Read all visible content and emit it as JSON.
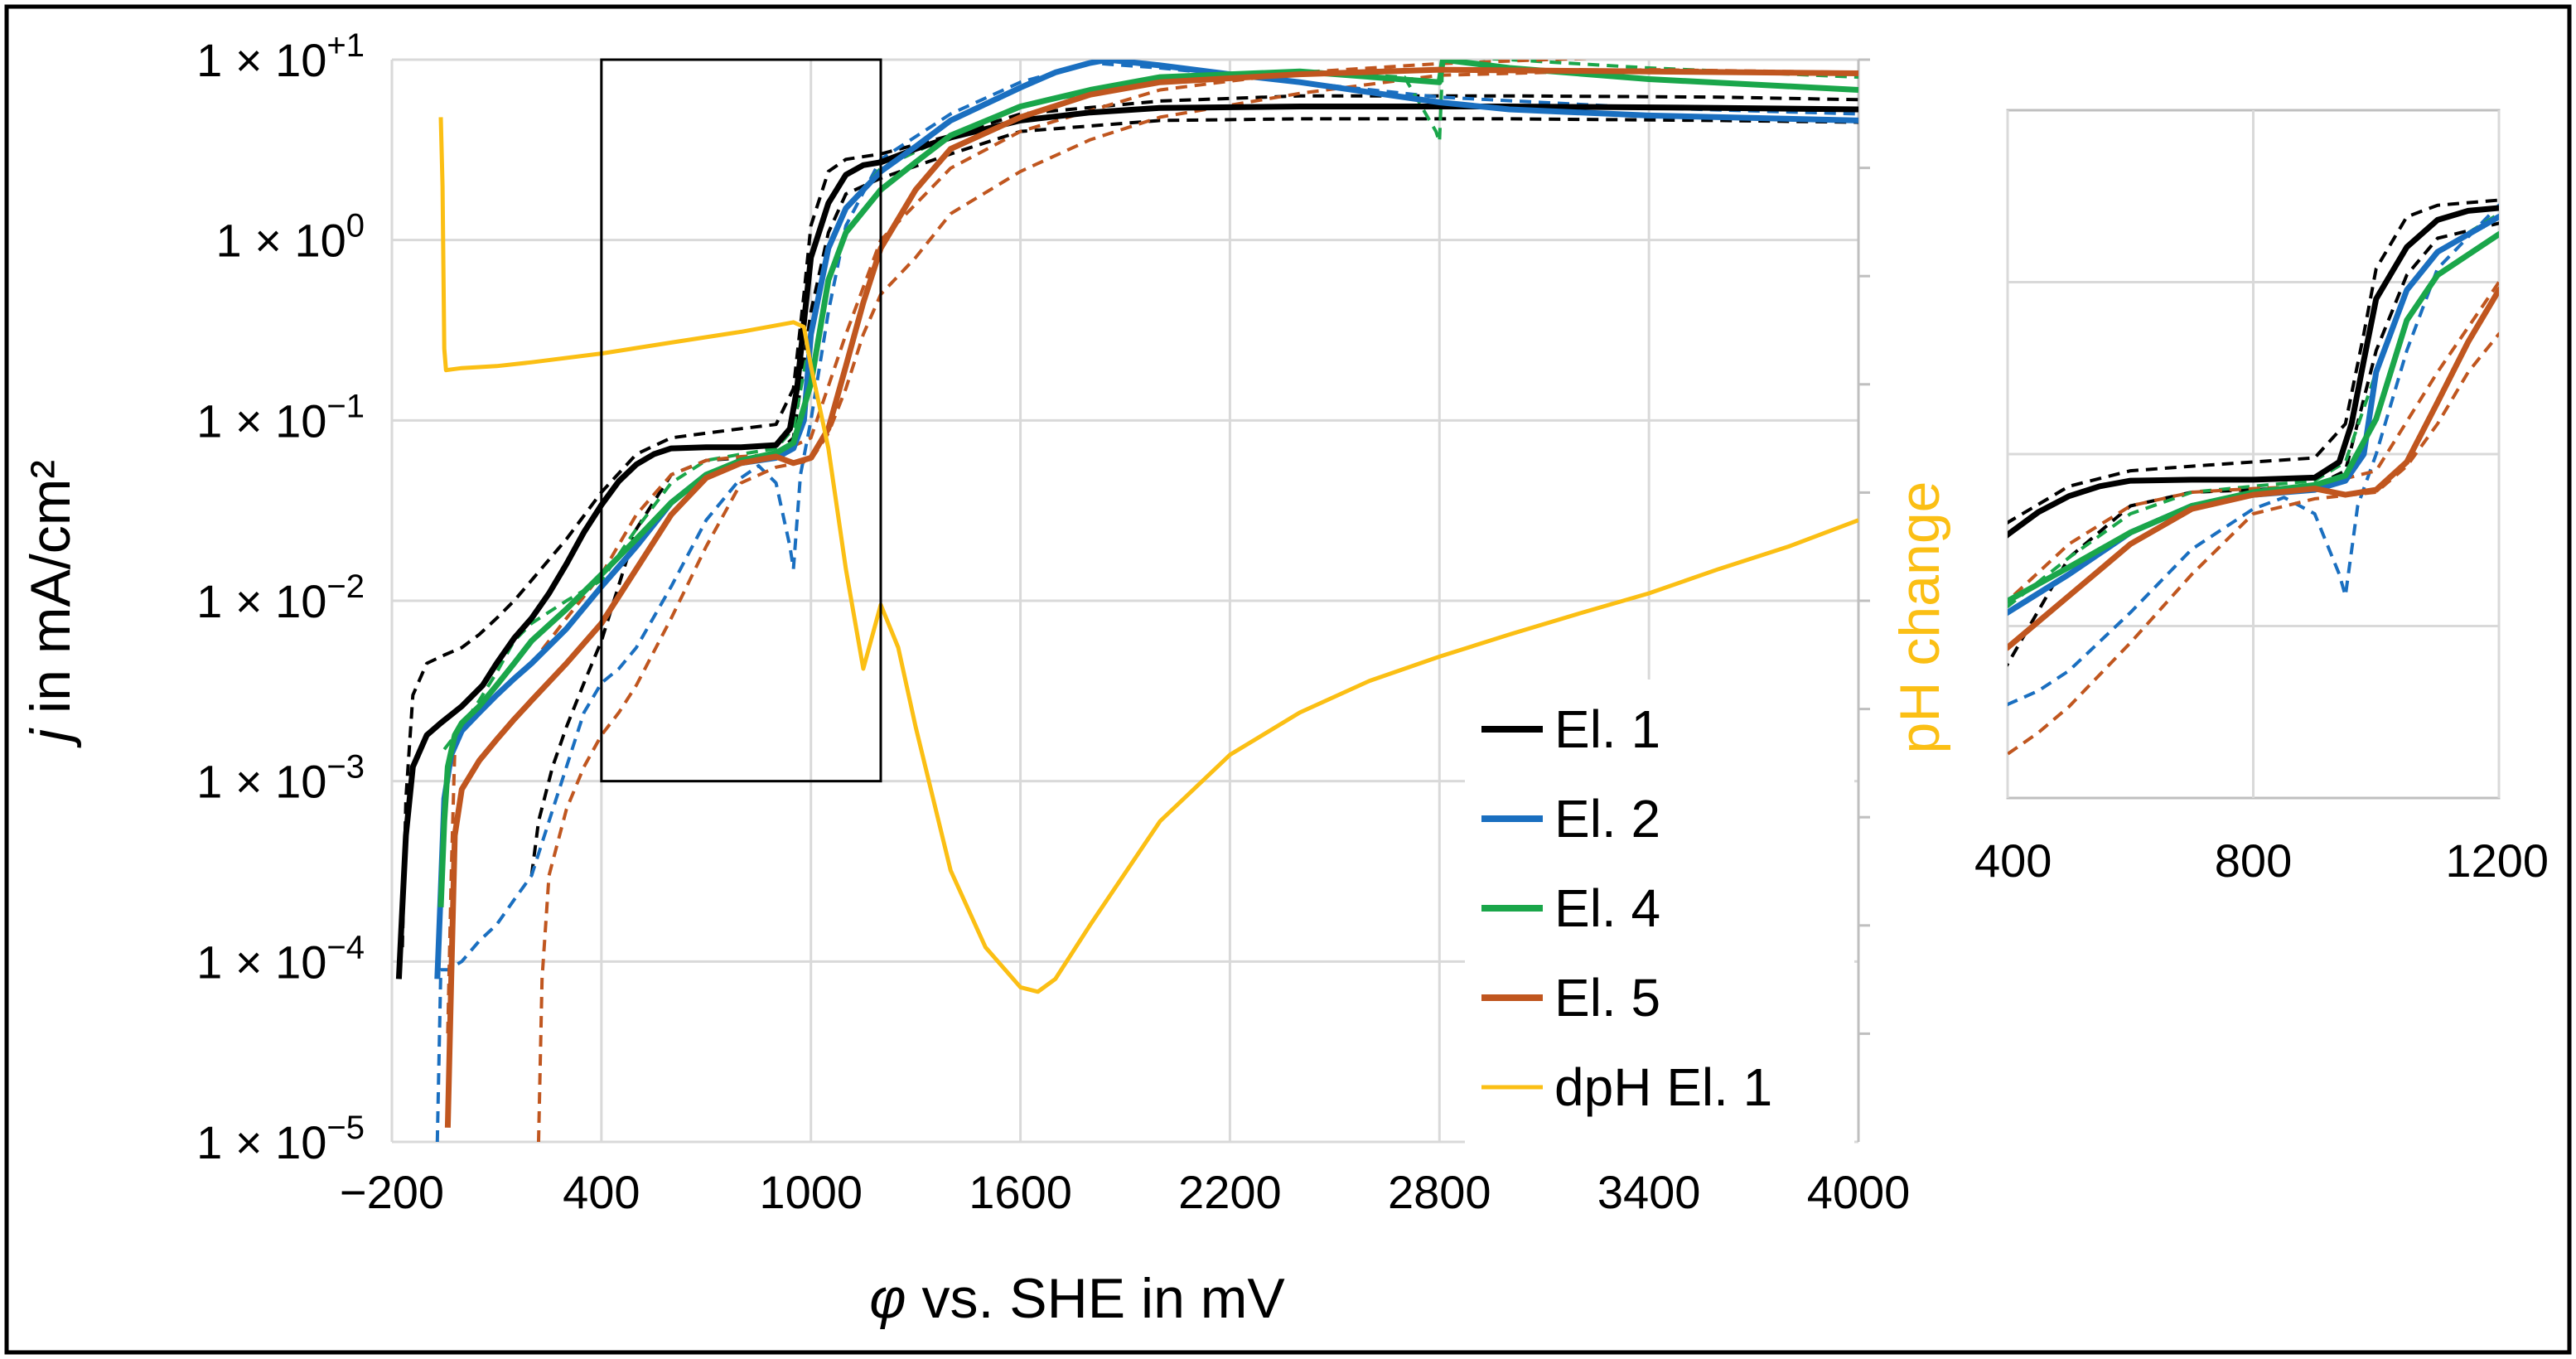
{
  "chart_data": [
    {
      "type": "line",
      "panel": "main",
      "title": "",
      "xlabel_symbol": "φ",
      "xlabel_rest": "vs. SHE in mV",
      "ylabel_symbol": "j",
      "ylabel_rest": "in mA/cm²",
      "secondary_ylabel": "pH change",
      "x_ticks": [
        "−200",
        "400",
        "1000",
        "1600",
        "2200",
        "2800",
        "3400",
        "4000"
      ],
      "x_tick_values": [
        -200,
        400,
        1000,
        1600,
        2200,
        2800,
        3400,
        4000
      ],
      "y_tick_labels": [
        {
          "base": "1 × 10",
          "exp": "+1"
        },
        {
          "base": "1 × 10",
          "exp": "0"
        },
        {
          "base": "1 × 10",
          "exp": "−1"
        },
        {
          "base": "1 × 10",
          "exp": "−2"
        },
        {
          "base": "1 × 10",
          "exp": "−3"
        },
        {
          "base": "1 × 10",
          "exp": "−4"
        },
        {
          "base": "1 × 10",
          "exp": "−5"
        }
      ],
      "xlim": [
        -200,
        4000
      ],
      "ylim_log10": [
        -5,
        1
      ],
      "zoom_box": {
        "x": [
          400,
          1200
        ],
        "y_log10": [
          -3,
          1
        ]
      },
      "series": [
        {
          "name": "El. 1",
          "color": "#000000",
          "style": "solid",
          "x": [
            -180,
            -170,
            -160,
            -140,
            -100,
            -60,
            0,
            60,
            100,
            150,
            200,
            250,
            300,
            350,
            400,
            450,
            500,
            550,
            600,
            700,
            800,
            900,
            940,
            960,
            980,
            1000,
            1050,
            1100,
            1150,
            1200,
            1300,
            1400,
            1600,
            1800,
            2000,
            2400,
            3000,
            3600,
            4000
          ],
          "y": [
            8e-05,
            0.0002,
            0.0005,
            0.0012,
            0.0018,
            0.0021,
            0.0026,
            0.0034,
            0.0045,
            0.0062,
            0.008,
            0.011,
            0.016,
            0.024,
            0.034,
            0.046,
            0.057,
            0.065,
            0.07,
            0.071,
            0.071,
            0.073,
            0.09,
            0.15,
            0.35,
            0.8,
            1.6,
            2.3,
            2.6,
            2.7,
            3.2,
            3.7,
            4.6,
            5.1,
            5.4,
            5.5,
            5.5,
            5.4,
            5.3
          ]
        },
        {
          "name": "El. 1 (dashed)",
          "color": "#000000",
          "style": "dashed",
          "x": [
            -170,
            -160,
            -140,
            -100,
            -50,
            0,
            50,
            100,
            150,
            200,
            300,
            400,
            500,
            600,
            700,
            800,
            900,
            950,
            980,
            1000,
            1050,
            1100,
            1200,
            1400,
            1600,
            2000,
            2400,
            3000,
            3600,
            4000
          ],
          "y": [
            0.00012,
            0.0008,
            0.003,
            0.0045,
            0.005,
            0.0055,
            0.0065,
            0.008,
            0.01,
            0.013,
            0.022,
            0.04,
            0.065,
            0.08,
            0.085,
            0.09,
            0.095,
            0.15,
            0.5,
            1.2,
            2.4,
            2.8,
            3.0,
            3.8,
            5.0,
            5.9,
            6.3,
            6.3,
            6.2,
            6.0
          ]
        },
        {
          "name": "El. 1 (dashed 2)",
          "color": "#000000",
          "style": "dashed",
          "x": [
            200,
            220,
            260,
            300,
            350,
            400,
            500,
            600,
            700,
            800,
            900,
            950,
            1000,
            1050,
            1100,
            1200,
            1400,
            1600,
            2000,
            2400,
            3000,
            3600,
            4000
          ],
          "y": [
            0.0003,
            0.0006,
            0.0012,
            0.002,
            0.0035,
            0.006,
            0.025,
            0.05,
            0.06,
            0.062,
            0.065,
            0.08,
            0.4,
            1.1,
            1.8,
            2.2,
            3.0,
            4.0,
            4.6,
            4.7,
            4.7,
            4.6,
            4.5
          ]
        },
        {
          "name": "El. 2",
          "color": "#1a6fc0",
          "style": "solid",
          "x": [
            -70,
            -60,
            -50,
            -30,
            0,
            50,
            100,
            150,
            200,
            300,
            400,
            500,
            600,
            700,
            800,
            900,
            950,
            980,
            1000,
            1050,
            1100,
            1200,
            1300,
            1400,
            1600,
            1700,
            1800,
            1850,
            2000,
            2200,
            2400,
            2600,
            2800,
            3000,
            3400,
            4000
          ],
          "y": [
            8e-05,
            0.00025,
            0.0008,
            0.0014,
            0.0019,
            0.0024,
            0.003,
            0.0037,
            0.0045,
            0.007,
            0.012,
            0.02,
            0.035,
            0.05,
            0.058,
            0.062,
            0.07,
            0.1,
            0.3,
            0.9,
            1.5,
            2.4,
            3.3,
            4.6,
            7.0,
            8.5,
            9.6,
            10.0,
            9.3,
            8.3,
            7.5,
            6.6,
            5.8,
            5.3,
            4.9,
            4.6
          ]
        },
        {
          "name": "El. 2 (dashed)",
          "color": "#1a6fc0",
          "style": "dashed",
          "x": [
            -70,
            -60,
            -40,
            0,
            50,
            100,
            150,
            200,
            250,
            300,
            350,
            400,
            450,
            500,
            600,
            700,
            800,
            850,
            900,
            940,
            950,
            970,
            1000,
            1050,
            1100,
            1200,
            1400,
            1600,
            1800,
            2000,
            2400,
            2800,
            3400,
            4000
          ],
          "y": [
            1e-05,
            9e-05,
            9e-05,
            0.0001,
            0.00013,
            0.00016,
            0.00022,
            0.0003,
            0.0006,
            0.0012,
            0.0024,
            0.0035,
            0.0042,
            0.0055,
            0.012,
            0.028,
            0.048,
            0.056,
            0.045,
            0.02,
            0.015,
            0.05,
            0.1,
            0.4,
            1.2,
            2.8,
            5.0,
            7.5,
            9.6,
            9.0,
            7.5,
            6.2,
            5.4,
            5.0
          ]
        },
        {
          "name": "El. 4",
          "color": "#1aa64a",
          "style": "solid",
          "x": [
            -60,
            -50,
            -40,
            -20,
            0,
            50,
            100,
            150,
            200,
            300,
            400,
            500,
            600,
            700,
            800,
            900,
            950,
            1000,
            1050,
            1100,
            1200,
            1300,
            1400,
            1600,
            1800,
            2000,
            2400,
            2800,
            2810,
            3000,
            3400,
            4000
          ],
          "y": [
            0.0002,
            0.0006,
            0.0012,
            0.0018,
            0.0021,
            0.0026,
            0.0034,
            0.0045,
            0.006,
            0.009,
            0.014,
            0.022,
            0.035,
            0.05,
            0.06,
            0.066,
            0.075,
            0.16,
            0.6,
            1.1,
            1.9,
            2.7,
            3.8,
            5.5,
            6.8,
            8.0,
            8.6,
            7.5,
            10.0,
            9.0,
            7.8,
            6.8
          ]
        },
        {
          "name": "El. 4 (dashed)",
          "color": "#1aa64a",
          "style": "dashed",
          "x": [
            -50,
            0,
            50,
            100,
            150,
            200,
            300,
            400,
            500,
            600,
            700,
            800,
            900,
            950,
            1000,
            1050,
            1100,
            1200,
            1400,
            1600,
            2000,
            2400,
            2700,
            2790,
            2800,
            2810,
            3000,
            3400,
            4000
          ],
          "y": [
            0.0015,
            0.002,
            0.0028,
            0.004,
            0.006,
            0.0075,
            0.01,
            0.013,
            0.025,
            0.045,
            0.06,
            0.065,
            0.07,
            0.09,
            0.3,
            0.9,
            1.5,
            2.5,
            3.8,
            5.6,
            7.6,
            8.6,
            8.0,
            4.0,
            3.5,
            10.5,
            10.0,
            9.0,
            8.0
          ]
        },
        {
          "name": "El. 5",
          "color": "#c0561f",
          "style": "solid",
          "x": [
            -40,
            -30,
            -20,
            0,
            50,
            100,
            150,
            200,
            300,
            400,
            500,
            600,
            700,
            800,
            900,
            950,
            1000,
            1050,
            1100,
            1150,
            1200,
            1300,
            1400,
            1600,
            1800,
            2000,
            2400,
            2800,
            3400,
            4000
          ],
          "y": [
            1.2e-05,
            8e-05,
            0.0005,
            0.0009,
            0.0013,
            0.0017,
            0.0022,
            0.0028,
            0.0045,
            0.0075,
            0.015,
            0.03,
            0.048,
            0.058,
            0.063,
            0.058,
            0.062,
            0.09,
            0.2,
            0.45,
            0.9,
            1.9,
            3.2,
            4.8,
            6.4,
            7.5,
            8.3,
            8.8,
            8.6,
            8.4
          ]
        },
        {
          "name": "El. 5 (dashed)",
          "color": "#c0561f",
          "style": "dashed",
          "x": [
            220,
            230,
            250,
            300,
            350,
            400,
            450,
            500,
            600,
            700,
            800,
            900,
            1000,
            1050,
            1100,
            1150,
            1200,
            1300,
            1400,
            1600,
            1800,
            2000,
            2400,
            2800,
            3400,
            4000
          ],
          "y": [
            1e-05,
            8e-05,
            0.0003,
            0.0007,
            0.0012,
            0.0018,
            0.0024,
            0.0034,
            0.008,
            0.02,
            0.045,
            0.055,
            0.06,
            0.085,
            0.15,
            0.3,
            0.5,
            0.8,
            1.4,
            2.4,
            3.6,
            4.8,
            6.5,
            8.2,
            8.8,
            8.5
          ]
        },
        {
          "name": "El. 5 (dashed 2)",
          "color": "#c0561f",
          "style": "dashed",
          "x": [
            -40,
            -30,
            -20,
            0,
            100,
            200,
            300,
            400,
            500,
            600,
            700,
            800,
            900,
            1000,
            1100,
            1200,
            1400,
            1600,
            2000,
            2400,
            2800,
            3400,
            4000
          ],
          "y": [
            4e-05,
            0.0003,
            0.0015,
            0.002,
            0.003,
            0.0045,
            0.008,
            0.014,
            0.03,
            0.05,
            0.06,
            0.063,
            0.065,
            0.08,
            0.3,
            1.0,
            2.5,
            4.0,
            6.8,
            8.5,
            9.5,
            10.5,
            10.2
          ]
        },
        {
          "name": "dpH El. 1",
          "color": "#fbbf14",
          "style": "solid",
          "x": [
            -60,
            -55,
            -50,
            -45,
            0,
            100,
            200,
            400,
            600,
            800,
            950,
            980,
            1000,
            1050,
            1100,
            1150,
            1200,
            1250,
            1300,
            1400,
            1500,
            1600,
            1650,
            1700,
            1800,
            2000,
            2200,
            2400,
            2600,
            2800,
            3000,
            3200,
            3400,
            3600,
            3800,
            4000
          ],
          "y": [
            4.8,
            2.0,
            0.25,
            0.19,
            0.195,
            0.2,
            0.21,
            0.235,
            0.27,
            0.31,
            0.35,
            0.33,
            0.2,
            0.07,
            0.015,
            0.0042,
            0.0095,
            0.0055,
            0.002,
            0.00032,
            0.00012,
            7.2e-05,
            6.8e-05,
            8e-05,
            0.00016,
            0.0006,
            0.0014,
            0.0024,
            0.0036,
            0.0049,
            0.0065,
            0.0085,
            0.011,
            0.015,
            0.02,
            0.028
          ]
        }
      ],
      "legend": [
        "El. 1",
        "El. 2",
        "El. 4",
        "El. 5",
        "dpH El. 1"
      ],
      "legend_colors": [
        "#000000",
        "#1a6fc0",
        "#1aa64a",
        "#c0561f",
        "#fbbf14"
      ],
      "grid": true
    },
    {
      "type": "line",
      "panel": "inset",
      "title": "",
      "x_ticks": [
        "400",
        "800",
        "1200"
      ],
      "x_tick_values": [
        400,
        800,
        1200
      ],
      "xlim": [
        400,
        1200
      ],
      "ylim_log10": [
        -3,
        1
      ],
      "grid": true,
      "note": "zoomed view of the boxed region of the main panel (same series, dpH not shown)"
    }
  ]
}
